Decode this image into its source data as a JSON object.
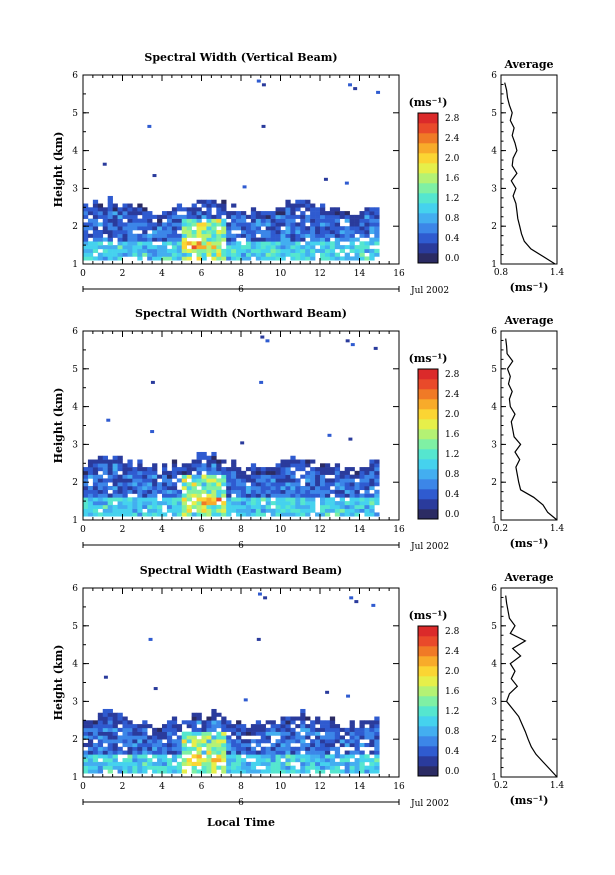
{
  "page": {
    "xlabel": "Local Time",
    "date_label": "Jul 2002",
    "day_marker": "6"
  },
  "colorscale": {
    "unit_label": "(ms⁻¹)",
    "colors": [
      "#2b2b63",
      "#2a3b9c",
      "#2f5bd0",
      "#3c86e8",
      "#43aef0",
      "#45d2ee",
      "#55e6cf",
      "#7ff0a4",
      "#b4f274",
      "#e6ef4a",
      "#fbd533",
      "#f8ab2a",
      "#f07a26",
      "#e94a2a",
      "#db2a2a"
    ]
  },
  "chart_data": [
    {
      "type": "heatmap",
      "title": "Spectral Width (Vertical Beam)",
      "ylabel": "Height (km)",
      "xlim": [
        0,
        16
      ],
      "ylim": [
        1,
        6
      ],
      "xticks": [
        "0",
        "2",
        "4",
        "6",
        "8",
        "10",
        "12",
        "14",
        "16"
      ],
      "yticks": [
        "1",
        "2",
        "3",
        "4",
        "5",
        "6"
      ],
      "colorbar": {
        "ticks": [
          "0.0",
          "0.4",
          "0.8",
          "1.2",
          "1.6",
          "2.0",
          "2.4",
          "2.8"
        ],
        "range": [
          0,
          3.0
        ]
      },
      "profile": {
        "title": "Average",
        "xlabel": "(ms⁻¹)",
        "xticks": [
          "0.8",
          "1.4"
        ],
        "xlim": [
          0.8,
          1.4
        ],
        "heights": [
          1.0,
          1.2,
          1.4,
          1.6,
          1.8,
          2.0,
          2.2,
          2.4,
          2.6,
          2.8,
          3.0,
          3.2,
          3.4,
          3.6,
          3.8,
          4.0,
          4.2,
          4.4,
          4.6,
          4.8,
          5.0,
          5.2,
          5.4,
          5.6,
          5.8
        ],
        "values": [
          1.38,
          1.25,
          1.12,
          1.05,
          1.02,
          1.0,
          0.98,
          0.97,
          0.96,
          0.93,
          0.96,
          0.91,
          0.97,
          0.92,
          0.93,
          0.97,
          0.95,
          0.92,
          0.94,
          0.9,
          0.92,
          0.89,
          0.87,
          0.86,
          0.84
        ]
      }
    },
    {
      "type": "heatmap",
      "title": "Spectral Width (Northward Beam)",
      "ylabel": "Height (km)",
      "xlim": [
        0,
        16
      ],
      "ylim": [
        1,
        6
      ],
      "xticks": [
        "0",
        "2",
        "4",
        "6",
        "8",
        "10",
        "12",
        "14",
        "16"
      ],
      "yticks": [
        "1",
        "2",
        "3",
        "4",
        "5",
        "6"
      ],
      "colorbar": {
        "ticks": [
          "0.0",
          "0.4",
          "0.8",
          "1.2",
          "1.6",
          "2.0",
          "2.4",
          "2.8"
        ],
        "range": [
          0,
          3.0
        ]
      },
      "profile": {
        "title": "Average",
        "xlabel": "(ms⁻¹)",
        "xticks": [
          "0.2",
          "1.4"
        ],
        "xlim": [
          0.2,
          1.4
        ],
        "heights": [
          1.0,
          1.2,
          1.4,
          1.6,
          1.8,
          2.0,
          2.2,
          2.4,
          2.6,
          2.8,
          3.0,
          3.2,
          3.4,
          3.6,
          3.8,
          4.0,
          4.2,
          4.4,
          4.6,
          4.8,
          5.0,
          5.2,
          5.4,
          5.6,
          5.8
        ],
        "values": [
          1.4,
          1.2,
          1.1,
          0.9,
          0.62,
          0.58,
          0.55,
          0.52,
          0.6,
          0.5,
          0.62,
          0.48,
          0.45,
          0.42,
          0.5,
          0.4,
          0.38,
          0.44,
          0.36,
          0.4,
          0.34,
          0.45,
          0.33,
          0.32,
          0.3
        ]
      }
    },
    {
      "type": "heatmap",
      "title": "Spectral Width (Eastward Beam)",
      "ylabel": "Height (km)",
      "xlim": [
        0,
        16
      ],
      "ylim": [
        1,
        6
      ],
      "xticks": [
        "0",
        "2",
        "4",
        "6",
        "8",
        "10",
        "12",
        "14",
        "16"
      ],
      "yticks": [
        "1",
        "2",
        "3",
        "4",
        "5",
        "6"
      ],
      "colorbar": {
        "ticks": [
          "0.0",
          "0.4",
          "0.8",
          "1.2",
          "1.6",
          "2.0",
          "2.4",
          "2.8"
        ],
        "range": [
          0,
          3.0
        ]
      },
      "profile": {
        "title": "Average",
        "xlabel": "(ms⁻¹)",
        "xticks": [
          "0.2",
          "1.4"
        ],
        "xlim": [
          0.2,
          1.4
        ],
        "heights": [
          1.0,
          1.2,
          1.4,
          1.6,
          1.8,
          2.0,
          2.2,
          2.4,
          2.6,
          2.8,
          3.0,
          3.2,
          3.4,
          3.6,
          3.8,
          4.0,
          4.2,
          4.4,
          4.6,
          4.8,
          5.0,
          5.2,
          5.4,
          5.6,
          5.8
        ],
        "values": [
          1.4,
          1.25,
          1.1,
          0.95,
          0.85,
          0.78,
          0.72,
          0.65,
          0.58,
          0.45,
          0.32,
          0.38,
          0.55,
          0.42,
          0.5,
          0.4,
          0.62,
          0.45,
          0.72,
          0.4,
          0.5,
          0.38,
          0.35,
          0.32,
          0.3
        ]
      }
    }
  ]
}
